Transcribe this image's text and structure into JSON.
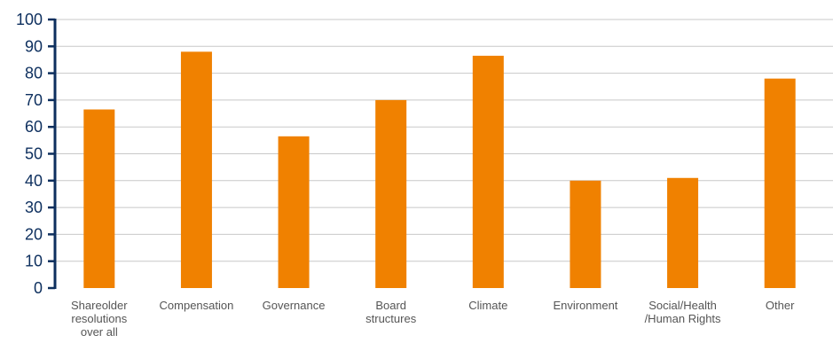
{
  "chart_data": {
    "type": "bar",
    "title": "",
    "xlabel": "",
    "ylabel": "",
    "ylim": [
      0,
      100
    ],
    "yticks": [
      0,
      10,
      20,
      30,
      40,
      50,
      60,
      70,
      80,
      90,
      100
    ],
    "grid": true,
    "categories": [
      [
        "Shareolder",
        "resolutions",
        "over all"
      ],
      [
        "Compensation"
      ],
      [
        "Governance"
      ],
      [
        "Board",
        "structures"
      ],
      [
        "Climate"
      ],
      [
        "Environment"
      ],
      [
        "Social/Health",
        "/Human Rights"
      ],
      [
        "Other"
      ]
    ],
    "values": [
      66.5,
      88,
      56.5,
      70,
      86.5,
      40,
      41,
      78
    ],
    "colors": {
      "bar": "#f08100",
      "axis": "#0d2f5e",
      "grid": "#c8c8c8",
      "ytick_text": "#0d2f5e",
      "xtick_text": "#555555"
    }
  }
}
